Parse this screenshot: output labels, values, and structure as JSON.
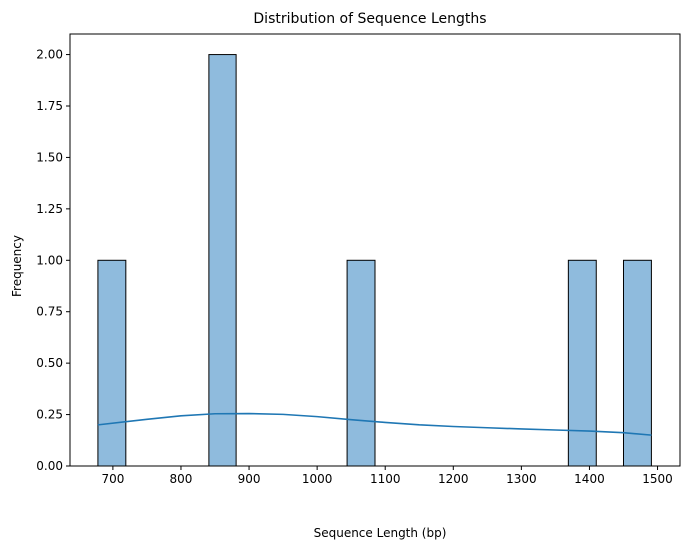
{
  "chart_data": {
    "type": "bar",
    "title": "Distribution of Sequence Lengths",
    "xlabel": "Sequence Length (bp)",
    "ylabel": "Frequency",
    "xlim": [
      637,
      1533
    ],
    "ylim": [
      0,
      2.1
    ],
    "xticks": [
      700,
      800,
      900,
      1000,
      1100,
      1200,
      1300,
      1400,
      1500
    ],
    "yticks": [
      "0.00",
      "0.25",
      "0.50",
      "0.75",
      "1.00",
      "1.25",
      "1.50",
      "1.75",
      "2.00"
    ],
    "bins": [
      {
        "start": 678,
        "end": 719,
        "count": 1
      },
      {
        "start": 841,
        "end": 881,
        "count": 2
      },
      {
        "start": 1044,
        "end": 1085,
        "count": 1
      },
      {
        "start": 1369,
        "end": 1410,
        "count": 1
      },
      {
        "start": 1450,
        "end": 1491,
        "count": 1
      }
    ],
    "kde": {
      "x": [
        678,
        750,
        800,
        850,
        900,
        950,
        1000,
        1050,
        1100,
        1150,
        1200,
        1250,
        1300,
        1350,
        1400,
        1450,
        1491
      ],
      "y": [
        0.2,
        0.227,
        0.244,
        0.254,
        0.255,
        0.251,
        0.24,
        0.225,
        0.212,
        0.2,
        0.192,
        0.186,
        0.18,
        0.175,
        0.17,
        0.162,
        0.15
      ]
    },
    "colors": {
      "bar_fill": "#8fbbdd",
      "bar_edge": "#000000",
      "kde_line": "#1f77b4"
    },
    "grid": false,
    "legend": "none"
  }
}
